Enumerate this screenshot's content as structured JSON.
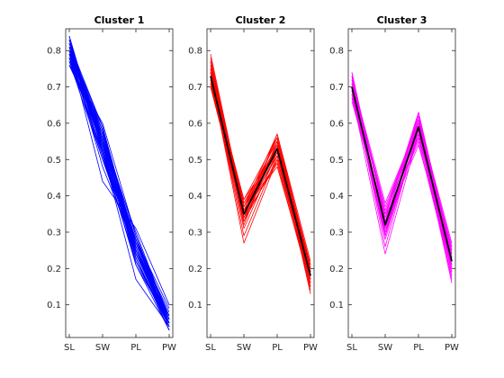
{
  "chart_data": [
    {
      "type": "line",
      "subtype": "parallel-coordinates",
      "title": "Cluster 1",
      "categories": [
        "SL",
        "SW",
        "PL",
        "PW"
      ],
      "xlabel": "",
      "ylabel": "",
      "ylim": [
        0.01,
        0.86
      ],
      "yticks": [
        0.1,
        0.2,
        0.3,
        0.4,
        0.5,
        0.6,
        0.7,
        0.8
      ],
      "color": "#0000ff",
      "mean": null,
      "series": [
        {
          "values": [
            0.8,
            0.54,
            0.27,
            0.06
          ]
        },
        {
          "values": [
            0.78,
            0.58,
            0.25,
            0.04
          ]
        },
        {
          "values": [
            0.83,
            0.52,
            0.24,
            0.05
          ]
        },
        {
          "values": [
            0.77,
            0.56,
            0.28,
            0.07
          ]
        },
        {
          "values": [
            0.79,
            0.5,
            0.26,
            0.05
          ]
        },
        {
          "values": [
            0.81,
            0.55,
            0.23,
            0.03
          ]
        },
        {
          "values": [
            0.76,
            0.6,
            0.29,
            0.06
          ]
        },
        {
          "values": [
            0.82,
            0.53,
            0.25,
            0.04
          ]
        },
        {
          "values": [
            0.8,
            0.57,
            0.27,
            0.08
          ]
        },
        {
          "values": [
            0.78,
            0.51,
            0.22,
            0.05
          ]
        },
        {
          "values": [
            0.79,
            0.59,
            0.24,
            0.05
          ]
        },
        {
          "values": [
            0.84,
            0.52,
            0.26,
            0.04
          ]
        },
        {
          "values": [
            0.77,
            0.55,
            0.3,
            0.06
          ]
        },
        {
          "values": [
            0.8,
            0.48,
            0.25,
            0.07
          ]
        },
        {
          "values": [
            0.81,
            0.58,
            0.21,
            0.03
          ]
        },
        {
          "values": [
            0.78,
            0.54,
            0.28,
            0.05
          ]
        },
        {
          "values": [
            0.82,
            0.56,
            0.24,
            0.06
          ]
        },
        {
          "values": [
            0.79,
            0.53,
            0.23,
            0.04
          ]
        },
        {
          "values": [
            0.76,
            0.57,
            0.27,
            0.07
          ]
        },
        {
          "values": [
            0.8,
            0.44,
            0.31,
            0.1
          ]
        },
        {
          "values": [
            0.83,
            0.55,
            0.26,
            0.05
          ]
        },
        {
          "values": [
            0.78,
            0.52,
            0.17,
            0.04
          ]
        },
        {
          "values": [
            0.81,
            0.59,
            0.25,
            0.06
          ]
        },
        {
          "values": [
            0.79,
            0.56,
            0.28,
            0.09
          ]
        },
        {
          "values": [
            0.77,
            0.5,
            0.24,
            0.05
          ]
        },
        {
          "values": [
            0.82,
            0.54,
            0.22,
            0.04
          ]
        },
        {
          "values": [
            0.8,
            0.57,
            0.29,
            0.06
          ]
        },
        {
          "values": [
            0.78,
            0.55,
            0.26,
            0.05
          ]
        },
        {
          "values": [
            0.84,
            0.53,
            0.23,
            0.03
          ]
        },
        {
          "values": [
            0.79,
            0.58,
            0.27,
            0.07
          ]
        },
        {
          "values": [
            0.81,
            0.51,
            0.25,
            0.05
          ]
        },
        {
          "values": [
            0.76,
            0.56,
            0.24,
            0.06
          ]
        },
        {
          "values": [
            0.8,
            0.54,
            0.28,
            0.04
          ]
        },
        {
          "values": [
            0.82,
            0.59,
            0.26,
            0.05
          ]
        },
        {
          "values": [
            0.78,
            0.52,
            0.21,
            0.05
          ]
        },
        {
          "values": [
            0.8,
            0.55,
            0.25,
            0.06
          ]
        },
        {
          "values": [
            0.79,
            0.57,
            0.27,
            0.05
          ]
        },
        {
          "values": [
            0.81,
            0.53,
            0.24,
            0.04
          ]
        },
        {
          "values": [
            0.77,
            0.56,
            0.26,
            0.06
          ]
        },
        {
          "values": [
            0.83,
            0.54,
            0.25,
            0.05
          ]
        }
      ]
    },
    {
      "type": "line",
      "subtype": "parallel-coordinates",
      "title": "Cluster 2",
      "categories": [
        "SL",
        "SW",
        "PL",
        "PW"
      ],
      "xlabel": "",
      "ylabel": "",
      "ylim": [
        0.01,
        0.86
      ],
      "yticks": [
        0.1,
        0.2,
        0.3,
        0.4,
        0.5,
        0.6,
        0.7,
        0.8
      ],
      "color": "#ff0000",
      "mean": [
        0.73,
        0.35,
        0.53,
        0.18
      ],
      "series": [
        {
          "values": [
            0.73,
            0.35,
            0.53,
            0.18
          ]
        },
        {
          "values": [
            0.75,
            0.38,
            0.55,
            0.2
          ]
        },
        {
          "values": [
            0.71,
            0.33,
            0.5,
            0.16
          ]
        },
        {
          "values": [
            0.78,
            0.36,
            0.54,
            0.19
          ]
        },
        {
          "values": [
            0.72,
            0.31,
            0.52,
            0.17
          ]
        },
        {
          "values": [
            0.74,
            0.39,
            0.56,
            0.21
          ]
        },
        {
          "values": [
            0.7,
            0.34,
            0.49,
            0.15
          ]
        },
        {
          "values": [
            0.76,
            0.37,
            0.57,
            0.22
          ]
        },
        {
          "values": [
            0.73,
            0.29,
            0.51,
            0.18
          ]
        },
        {
          "values": [
            0.77,
            0.35,
            0.54,
            0.17
          ]
        },
        {
          "values": [
            0.71,
            0.36,
            0.48,
            0.16
          ]
        },
        {
          "values": [
            0.74,
            0.33,
            0.55,
            0.2
          ]
        },
        {
          "values": [
            0.72,
            0.38,
            0.53,
            0.14
          ]
        },
        {
          "values": [
            0.75,
            0.34,
            0.52,
            0.19
          ]
        },
        {
          "values": [
            0.79,
            0.36,
            0.56,
            0.18
          ]
        },
        {
          "values": [
            0.73,
            0.27,
            0.5,
            0.17
          ]
        },
        {
          "values": [
            0.7,
            0.37,
            0.54,
            0.21
          ]
        },
        {
          "values": [
            0.76,
            0.35,
            0.51,
            0.16
          ]
        },
        {
          "values": [
            0.74,
            0.32,
            0.55,
            0.19
          ]
        },
        {
          "values": [
            0.72,
            0.39,
            0.53,
            0.18
          ]
        },
        {
          "values": [
            0.75,
            0.36,
            0.49,
            0.15
          ]
        },
        {
          "values": [
            0.71,
            0.34,
            0.57,
            0.2
          ]
        },
        {
          "values": [
            0.77,
            0.37,
            0.52,
            0.17
          ]
        },
        {
          "values": [
            0.73,
            0.33,
            0.54,
            0.13
          ]
        },
        {
          "values": [
            0.74,
            0.35,
            0.56,
            0.19
          ]
        }
      ]
    },
    {
      "type": "line",
      "subtype": "parallel-coordinates",
      "title": "Cluster 3",
      "categories": [
        "SL",
        "SW",
        "PL",
        "PW"
      ],
      "xlabel": "",
      "ylabel": "",
      "ylim": [
        0.01,
        0.86
      ],
      "yticks": [
        0.1,
        0.2,
        0.3,
        0.4,
        0.5,
        0.6,
        0.7,
        0.8
      ],
      "color": "#ff00ff",
      "mean": [
        0.7,
        0.32,
        0.59,
        0.22
      ],
      "series": [
        {
          "values": [
            0.7,
            0.32,
            0.59,
            0.22
          ]
        },
        {
          "values": [
            0.72,
            0.35,
            0.61,
            0.24
          ]
        },
        {
          "values": [
            0.68,
            0.3,
            0.57,
            0.2
          ]
        },
        {
          "values": [
            0.74,
            0.33,
            0.62,
            0.25
          ]
        },
        {
          "values": [
            0.69,
            0.28,
            0.58,
            0.21
          ]
        },
        {
          "values": [
            0.71,
            0.37,
            0.6,
            0.26
          ]
        },
        {
          "values": [
            0.67,
            0.31,
            0.56,
            0.19
          ]
        },
        {
          "values": [
            0.73,
            0.34,
            0.63,
            0.23
          ]
        },
        {
          "values": [
            0.7,
            0.26,
            0.59,
            0.22
          ]
        },
        {
          "values": [
            0.66,
            0.33,
            0.55,
            0.18
          ]
        },
        {
          "values": [
            0.72,
            0.36,
            0.61,
            0.27
          ]
        },
        {
          "values": [
            0.69,
            0.29,
            0.58,
            0.16
          ]
        },
        {
          "values": [
            0.71,
            0.32,
            0.6,
            0.24
          ]
        },
        {
          "values": [
            0.68,
            0.24,
            0.57,
            0.21
          ]
        },
        {
          "values": [
            0.73,
            0.35,
            0.62,
            0.23
          ]
        },
        {
          "values": [
            0.7,
            0.31,
            0.59,
            0.2
          ]
        },
        {
          "values": [
            0.67,
            0.34,
            0.56,
            0.25
          ]
        },
        {
          "values": [
            0.74,
            0.3,
            0.61,
            0.22
          ]
        },
        {
          "values": [
            0.69,
            0.33,
            0.58,
            0.19
          ]
        },
        {
          "values": [
            0.72,
            0.38,
            0.6,
            0.26
          ]
        },
        {
          "values": [
            0.7,
            0.32,
            0.54,
            0.21
          ]
        },
        {
          "values": [
            0.68,
            0.29,
            0.63,
            0.24
          ]
        },
        {
          "values": [
            0.71,
            0.35,
            0.59,
            0.17
          ]
        },
        {
          "values": [
            0.73,
            0.31,
            0.57,
            0.23
          ]
        },
        {
          "values": [
            0.69,
            0.33,
            0.61,
            0.22
          ]
        }
      ]
    }
  ]
}
